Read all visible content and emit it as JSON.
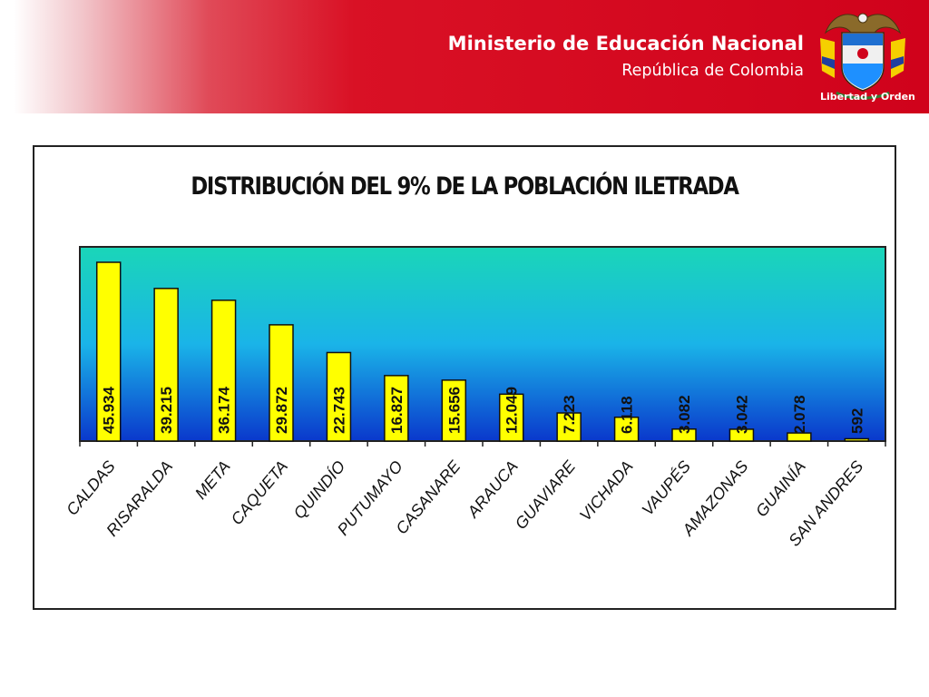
{
  "header": {
    "ministry": "Ministerio de Educación Nacional",
    "country": "República de Colombia",
    "motto": "Libertad y Orden",
    "logo_icon": "colombia-coat-of-arms-icon",
    "colors": {
      "brand_red": "#d0021b"
    }
  },
  "chart_data": {
    "type": "bar",
    "title": "DISTRIBUCIÓN DEL 9% DE LA POBLACIÓN ILETRADA",
    "xlabel": "",
    "ylabel": "",
    "categories": [
      "CALDAS",
      "RISARALDA",
      "META",
      "CAQUETA",
      "QUINDÍO",
      "PUTUMAYO",
      "CASANARE",
      "ARAUCA",
      "GUAVIARE",
      "VICHADA",
      "VAUPÉS",
      "AMAZONAS",
      "GUAINÍA",
      "SAN ANDRES"
    ],
    "values": [
      45934,
      39215,
      36174,
      29872,
      22743,
      16827,
      15656,
      12049,
      7223,
      6118,
      3082,
      3042,
      2078,
      592
    ],
    "data_labels": [
      "45.934",
      "39.215",
      "36.174",
      "29.872",
      "22.743",
      "16.827",
      "15.656",
      "12.049",
      "7.223",
      "6.118",
      "3.082",
      "3.042",
      "2.078",
      "592"
    ],
    "ylim": [
      0,
      50000
    ],
    "grid": false,
    "legend": "none",
    "colors": {
      "bar_fill": "#ffff00",
      "plot_bg_top": "#1ad6b8",
      "plot_bg_mid": "#1ab4e8",
      "plot_bg_bottom": "#0a38cc"
    }
  }
}
